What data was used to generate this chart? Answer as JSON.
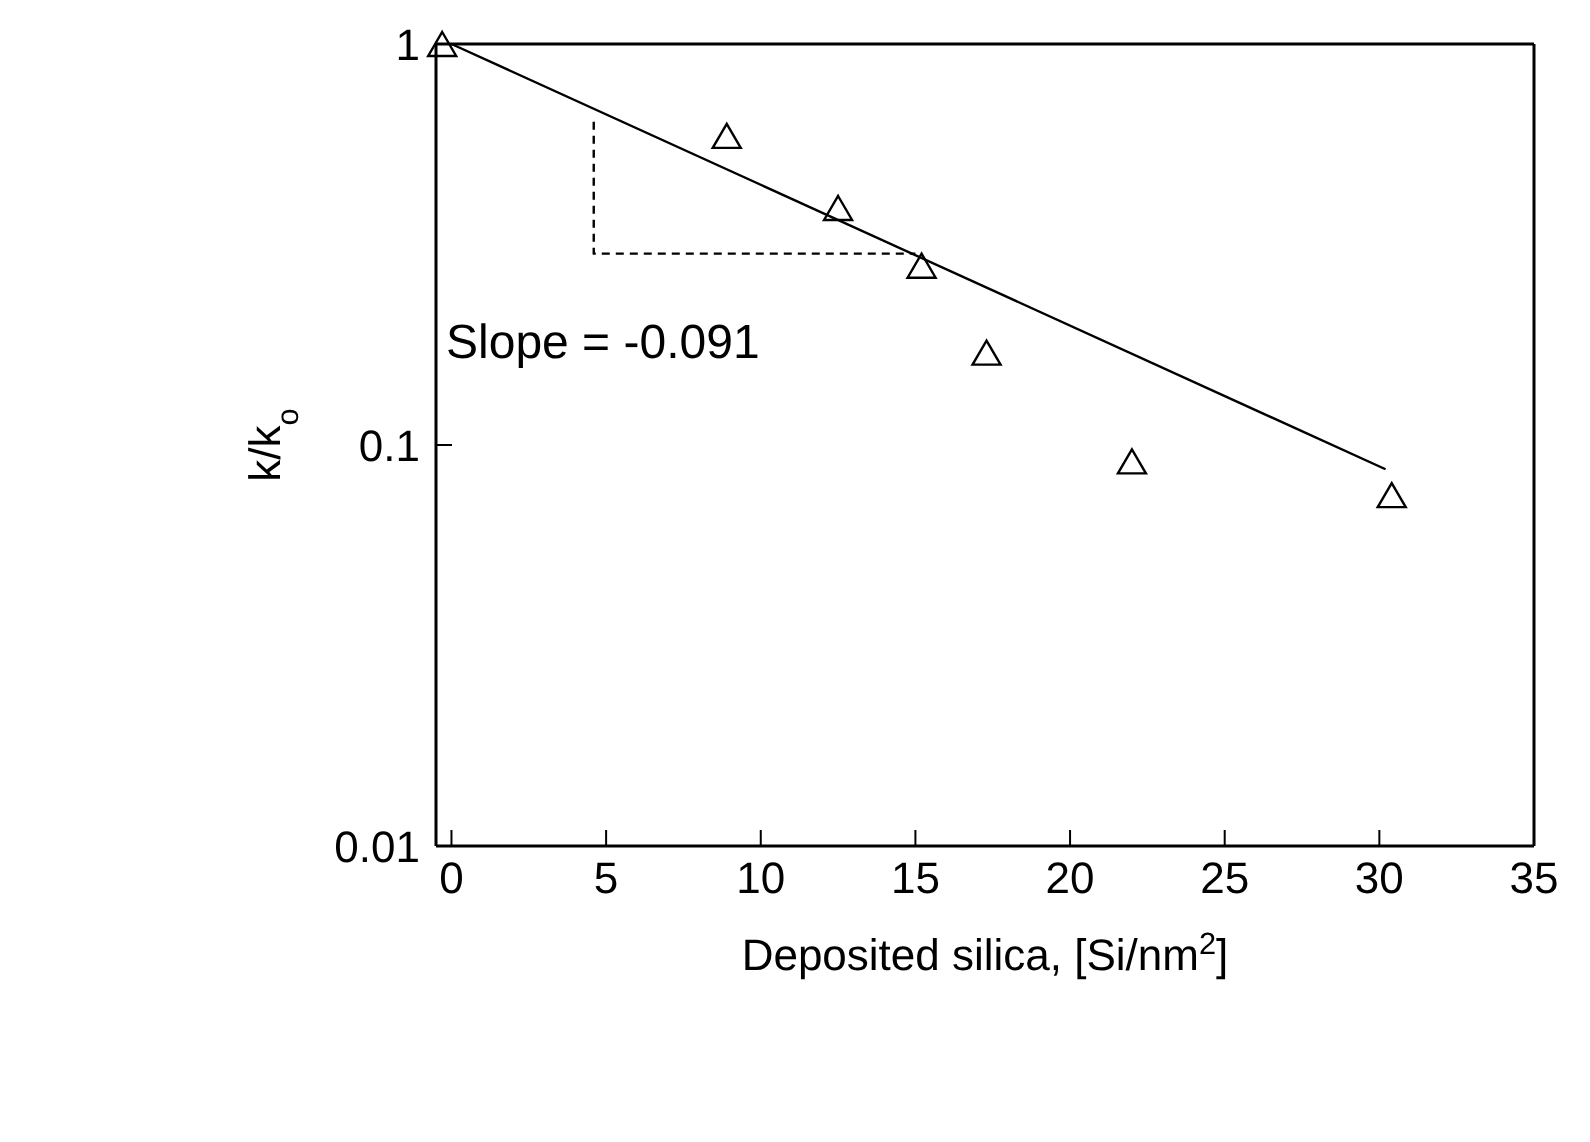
{
  "chart_data": {
    "type": "scatter",
    "xlabel": "Deposited silica, [Si/nm$^{2}$]",
    "ylabel": "k/k$_{o}$",
    "log": "y",
    "xlim": [
      -0.5,
      35
    ],
    "xticks": [
      0,
      5,
      10,
      15,
      20,
      25,
      30,
      35
    ],
    "ylim": [
      0.01,
      1
    ],
    "yticks": [
      0.01,
      0.1,
      1
    ],
    "grid": false,
    "legend": false,
    "annotations": [
      "Slope = -0.091"
    ],
    "series": [
      {
        "marker": "triangle",
        "color": "#000000",
        "x": [
          -0.3,
          8.9,
          12.5,
          15.2,
          17.3,
          22.0,
          30.4
        ],
        "values": [
          1.0,
          0.59,
          0.39,
          0.28,
          0.17,
          0.091,
          0.075
        ]
      },
      {
        "type": "line",
        "marker": "none",
        "line_style": "solid",
        "color": "#000000",
        "x": [
          0,
          30.2
        ],
        "values": [
          1.0,
          0.087
        ]
      },
      {
        "type": "line",
        "marker": "none",
        "line_style": "dashed",
        "color": "#000000",
        "x": [
          4.6,
          4.6,
          15.0
        ],
        "values": [
          0.64,
          0.3,
          0.3
        ]
      }
    ]
  }
}
